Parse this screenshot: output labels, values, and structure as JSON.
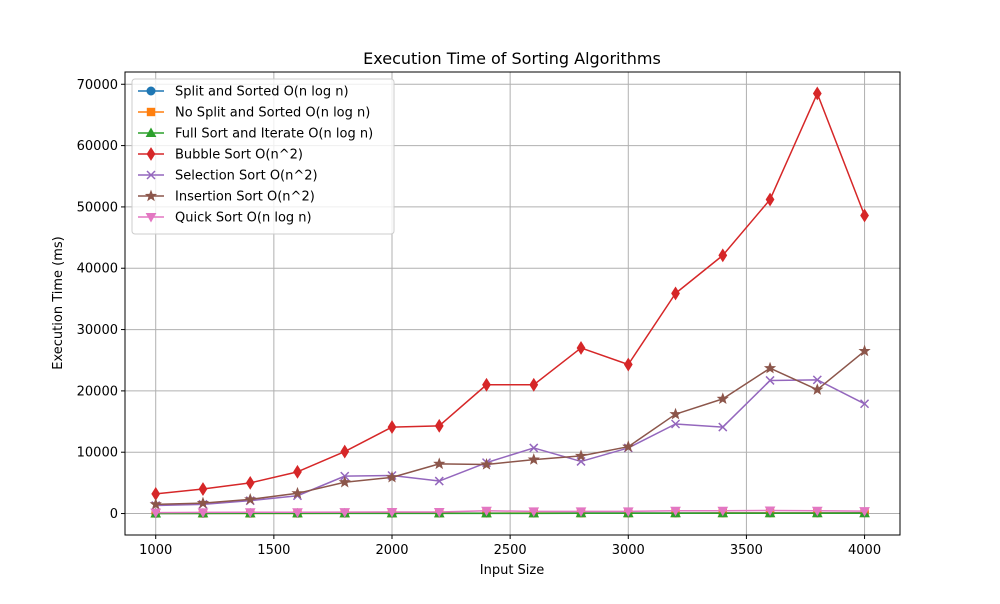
{
  "chart_data": {
    "type": "line",
    "title": "Execution Time of Sorting Algorithms",
    "xlabel": "Input Size",
    "ylabel": "Execution Time (ms)",
    "xlim": [
      870,
      4150
    ],
    "ylim": [
      -3500,
      72000
    ],
    "xticks": [
      1000,
      1500,
      2000,
      2500,
      3000,
      3500,
      4000
    ],
    "yticks": [
      0,
      10000,
      20000,
      30000,
      40000,
      50000,
      60000,
      70000
    ],
    "grid": true,
    "legend_position": "top-left",
    "x": [
      1000,
      1200,
      1400,
      1600,
      1800,
      2000,
      2200,
      2400,
      2600,
      2800,
      3000,
      3200,
      3400,
      3600,
      3800,
      4000
    ],
    "series": [
      {
        "name": "Split and Sorted O(n log n)",
        "color": "#1f77b4",
        "marker": "circle",
        "values": [
          30,
          35,
          40,
          45,
          50,
          55,
          60,
          70,
          75,
          80,
          85,
          95,
          100,
          110,
          115,
          125
        ]
      },
      {
        "name": "No Split and Sorted O(n log n)",
        "color": "#ff7f0e",
        "marker": "square",
        "values": [
          20,
          25,
          30,
          35,
          40,
          45,
          50,
          55,
          60,
          65,
          70,
          75,
          80,
          85,
          90,
          95
        ]
      },
      {
        "name": "Full Sort and Iterate O(n log n)",
        "color": "#2ca02c",
        "marker": "triangle-up",
        "values": [
          15,
          18,
          20,
          22,
          25,
          28,
          30,
          33,
          35,
          38,
          40,
          43,
          45,
          48,
          50,
          53
        ]
      },
      {
        "name": "Bubble Sort O(n^2)",
        "color": "#d62728",
        "marker": "diamond",
        "values": [
          3200,
          4000,
          5000,
          6800,
          10100,
          14100,
          14300,
          21000,
          21000,
          27000,
          24300,
          35900,
          42100,
          51200,
          68500,
          48600
        ]
      },
      {
        "name": "Selection Sort O(n^2)",
        "color": "#9467bd",
        "marker": "x",
        "values": [
          1300,
          1500,
          2100,
          2900,
          6100,
          6200,
          5300,
          8300,
          10700,
          8500,
          10700,
          14600,
          14100,
          21700,
          21800,
          17900
        ]
      },
      {
        "name": "Insertion Sort O(n^2)",
        "color": "#8c564b",
        "marker": "star",
        "values": [
          1500,
          1700,
          2300,
          3300,
          5100,
          5900,
          8100,
          8000,
          8800,
          9400,
          10900,
          16200,
          18700,
          23700,
          20200,
          26500
        ]
      },
      {
        "name": "Quick Sort O(n log n)",
        "color": "#e377c2",
        "marker": "triangle-down",
        "values": [
          150,
          180,
          200,
          200,
          230,
          250,
          250,
          450,
          350,
          350,
          350,
          450,
          450,
          500,
          450,
          400
        ]
      }
    ]
  }
}
